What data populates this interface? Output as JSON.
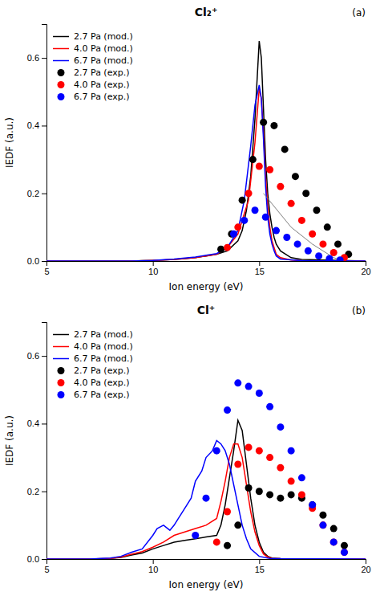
{
  "chart_data": [
    {
      "type": "line",
      "title": "Cl₂⁺",
      "annotations": [
        "(a)"
      ],
      "xlabel": "Ion energy (eV)",
      "ylabel": "IEDF (a.u.)",
      "xlim": [
        5,
        20
      ],
      "ylim": [
        0.0,
        0.7
      ],
      "xticks": [
        5,
        10,
        15,
        20
      ],
      "yticks": [
        {
          "value": 0.0,
          "label": "0.0"
        },
        0.2,
        0.4,
        0.6
      ],
      "legend": "upper left",
      "series": [
        {
          "name": "2.7 Pa (mod.)",
          "type": "line",
          "color": "#000000",
          "x": [
            5.0,
            6.0,
            7.0,
            8.0,
            9.0,
            9.5,
            10.0,
            10.5,
            11.0,
            11.5,
            12.0,
            12.5,
            13.0,
            13.5,
            14.0,
            14.2,
            14.4,
            14.6,
            14.8,
            15.0,
            15.1,
            15.2,
            15.3,
            15.4,
            15.5,
            15.6,
            15.7,
            15.8,
            16.0,
            16.5,
            17.0,
            20.0
          ],
          "values": [
            0.0,
            0.0,
            0.0,
            0.0,
            0.0,
            0.001,
            0.002,
            0.003,
            0.005,
            0.007,
            0.01,
            0.015,
            0.02,
            0.03,
            0.06,
            0.09,
            0.15,
            0.25,
            0.42,
            0.65,
            0.6,
            0.45,
            0.3,
            0.2,
            0.14,
            0.1,
            0.07,
            0.05,
            0.03,
            0.01,
            0.005,
            0.0
          ]
        },
        {
          "name": "4.0 Pa (mod.)",
          "type": "line",
          "color": "#ff0000",
          "x": [
            5.0,
            9.0,
            10.0,
            11.0,
            12.0,
            13.0,
            13.5,
            14.0,
            14.5,
            14.8,
            15.0,
            15.1,
            15.2,
            15.3,
            15.4,
            15.5,
            15.6,
            15.7,
            15.8,
            16.0,
            16.5,
            17.0,
            20.0
          ],
          "values": [
            0.0,
            0.0,
            0.002,
            0.005,
            0.01,
            0.02,
            0.04,
            0.08,
            0.18,
            0.35,
            0.51,
            0.48,
            0.38,
            0.25,
            0.16,
            0.1,
            0.06,
            0.04,
            0.02,
            0.01,
            0.003,
            0.001,
            0.0
          ]
        },
        {
          "name": "6.7 Pa (mod.)",
          "type": "line",
          "color": "#0000ff",
          "x": [
            5.0,
            9.0,
            10.0,
            11.0,
            12.0,
            13.0,
            13.5,
            14.0,
            14.3,
            14.6,
            14.8,
            15.0,
            15.1,
            15.2,
            15.3,
            15.4,
            15.5,
            15.6,
            15.7,
            15.8,
            16.0,
            17.0,
            20.0
          ],
          "values": [
            0.0,
            0.0,
            0.002,
            0.006,
            0.012,
            0.022,
            0.04,
            0.09,
            0.18,
            0.34,
            0.46,
            0.52,
            0.48,
            0.36,
            0.22,
            0.13,
            0.08,
            0.05,
            0.03,
            0.015,
            0.006,
            0.001,
            0.0
          ]
        },
        {
          "name": "2.7 Pa (exp.)",
          "type": "scatter",
          "color": "#000000",
          "x": [
            13.2,
            13.7,
            14.2,
            14.7,
            15.2,
            15.7,
            16.2,
            16.7,
            17.2,
            17.7,
            18.2,
            18.7,
            19.2
          ],
          "values": [
            0.035,
            0.08,
            0.18,
            0.3,
            0.41,
            0.4,
            0.33,
            0.25,
            0.2,
            0.15,
            0.1,
            0.05,
            0.02
          ]
        },
        {
          "name": "4.0 Pa (exp.)",
          "type": "scatter",
          "color": "#ff0000",
          "x": [
            13.5,
            14.0,
            14.5,
            15.0,
            15.5,
            16.0,
            16.5,
            17.0,
            17.5,
            18.0,
            18.5,
            19.0
          ],
          "values": [
            0.04,
            0.1,
            0.2,
            0.28,
            0.27,
            0.22,
            0.17,
            0.12,
            0.08,
            0.05,
            0.025,
            0.01
          ]
        },
        {
          "name": "6.7 Pa (exp.)",
          "type": "scatter",
          "color": "#0000ff",
          "x": [
            13.8,
            14.3,
            14.8,
            15.3,
            15.8,
            16.3,
            16.8,
            17.3,
            17.8,
            18.3,
            18.8
          ],
          "values": [
            0.08,
            0.12,
            0.15,
            0.13,
            0.09,
            0.07,
            0.05,
            0.03,
            0.015,
            0.007,
            0.003
          ]
        },
        {
          "type": "line",
          "color": "gray",
          "x": [
            15.2,
            16.5,
            17.5,
            18.5,
            19.0
          ],
          "values": [
            0.2,
            0.1,
            0.05,
            0.01,
            0.0
          ]
        }
      ]
    },
    {
      "type": "line",
      "title": "Cl⁺",
      "annotations": [
        "(b)"
      ],
      "xlabel": "Ion energy (eV)",
      "ylabel": "IEDF (a.u.)",
      "xlim": [
        5,
        20
      ],
      "ylim": [
        0.0,
        0.7
      ],
      "xticks": [
        5,
        10,
        15,
        20
      ],
      "yticks": [
        {
          "value": 0.0,
          "label": "0.0"
        },
        0.2,
        0.4,
        0.6
      ],
      "legend": "upper left",
      "series": [
        {
          "name": "2.7 Pa (mod.)",
          "type": "line",
          "color": "#000000",
          "x": [
            5.0,
            7.0,
            8.0,
            8.5,
            9.0,
            9.5,
            10.0,
            10.5,
            11.0,
            11.5,
            12.0,
            12.5,
            13.0,
            13.2,
            13.4,
            13.6,
            13.8,
            14.0,
            14.2,
            14.4,
            14.6,
            14.8,
            15.0,
            15.2,
            15.4,
            15.6,
            16.0,
            17.0,
            20.0
          ],
          "values": [
            0.0,
            0.0,
            0.002,
            0.005,
            0.012,
            0.018,
            0.03,
            0.04,
            0.05,
            0.055,
            0.06,
            0.065,
            0.07,
            0.1,
            0.16,
            0.24,
            0.32,
            0.41,
            0.38,
            0.28,
            0.18,
            0.1,
            0.05,
            0.02,
            0.008,
            0.003,
            0.001,
            0.0,
            0.0
          ]
        },
        {
          "name": "4.0 Pa (mod.)",
          "type": "line",
          "color": "#ff0000",
          "x": [
            5.0,
            7.0,
            8.0,
            8.5,
            9.0,
            9.5,
            10.0,
            10.5,
            11.0,
            11.5,
            12.0,
            12.5,
            13.0,
            13.2,
            13.4,
            13.6,
            13.8,
            14.0,
            14.2,
            14.4,
            14.6,
            14.8,
            15.0,
            15.2,
            15.4,
            15.6,
            16.0,
            17.0,
            20.0
          ],
          "values": [
            0.0,
            0.0,
            0.002,
            0.006,
            0.014,
            0.022,
            0.035,
            0.05,
            0.07,
            0.08,
            0.09,
            0.1,
            0.12,
            0.17,
            0.23,
            0.3,
            0.34,
            0.34,
            0.3,
            0.22,
            0.14,
            0.08,
            0.04,
            0.015,
            0.006,
            0.002,
            0.001,
            0.0,
            0.0
          ]
        },
        {
          "name": "6.7 Pa (mod.)",
          "type": "line",
          "color": "#0000ff",
          "x": [
            5.0,
            7.0,
            8.0,
            8.5,
            9.0,
            9.5,
            10.0,
            10.2,
            10.5,
            10.8,
            11.0,
            11.2,
            11.5,
            11.8,
            12.0,
            12.3,
            12.5,
            12.8,
            13.0,
            13.2,
            13.4,
            13.6,
            13.8,
            14.0,
            14.2,
            14.4,
            14.6,
            15.0,
            15.5,
            16.0,
            20.0
          ],
          "values": [
            0.0,
            0.0,
            0.003,
            0.008,
            0.02,
            0.03,
            0.07,
            0.09,
            0.1,
            0.085,
            0.1,
            0.12,
            0.15,
            0.18,
            0.23,
            0.26,
            0.3,
            0.32,
            0.35,
            0.34,
            0.32,
            0.28,
            0.22,
            0.16,
            0.1,
            0.06,
            0.03,
            0.008,
            0.002,
            0.001,
            0.0
          ]
        },
        {
          "name": "2.7 Pa (exp.)",
          "type": "scatter",
          "color": "#000000",
          "x": [
            13.5,
            14.0,
            14.5,
            15.0,
            15.5,
            16.0,
            16.5,
            17.0,
            17.5,
            18.0,
            18.5,
            19.0
          ],
          "values": [
            0.04,
            0.1,
            0.21,
            0.2,
            0.19,
            0.18,
            0.19,
            0.18,
            0.16,
            0.13,
            0.09,
            0.04
          ]
        },
        {
          "name": "4.0 Pa (exp.)",
          "type": "scatter",
          "color": "#ff0000",
          "x": [
            13.0,
            13.5,
            14.0,
            14.5,
            15.0,
            15.5,
            16.0,
            16.5,
            17.0,
            17.5,
            18.0,
            18.5,
            19.0
          ],
          "values": [
            0.05,
            0.14,
            0.28,
            0.33,
            0.32,
            0.3,
            0.27,
            0.23,
            0.19,
            0.15,
            0.1,
            0.05,
            0.02
          ]
        },
        {
          "name": "6.7 Pa (exp.)",
          "type": "scatter",
          "color": "#0000ff",
          "x": [
            12.0,
            12.5,
            13.0,
            13.5,
            14.0,
            14.5,
            15.0,
            15.5,
            16.0,
            16.5,
            17.0,
            17.5,
            18.0,
            18.5,
            19.0
          ],
          "values": [
            0.07,
            0.18,
            0.32,
            0.44,
            0.52,
            0.51,
            0.49,
            0.45,
            0.39,
            0.32,
            0.24,
            0.16,
            0.1,
            0.05,
            0.02
          ]
        }
      ]
    }
  ]
}
